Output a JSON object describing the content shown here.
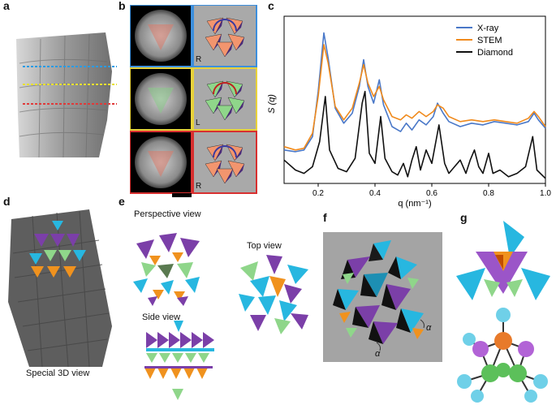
{
  "panel_labels": {
    "a": "a",
    "b": "b",
    "c": "c",
    "d": "d",
    "e": "e",
    "f": "f",
    "g": "g"
  },
  "panel_b": {
    "chirality": [
      "R",
      "L",
      "R"
    ],
    "frame_colors": [
      "#3d8fdd",
      "#e8d23a",
      "#d83030"
    ]
  },
  "panel_a": {
    "line_colors": [
      "#2b9be3",
      "#e8e030",
      "#e03a3a"
    ]
  },
  "panel_e": {
    "perspective": "Perspective view",
    "side": "Side view",
    "top": "Top view"
  },
  "panel_d": {
    "caption": "Special 3D view"
  },
  "panel_f": {
    "angle_labels": [
      "α",
      "α"
    ]
  },
  "colors": {
    "xray": "#4a78c8",
    "stem": "#f08a1c",
    "diamond": "#111111",
    "purple": "#7b3fa8",
    "cyan": "#27b7e0",
    "orange": "#f0921e",
    "green": "#8fd68a"
  },
  "chart_data": {
    "type": "line",
    "xlabel": "q (nm⁻¹)",
    "ylabel": "S (q)",
    "xlim": [
      0.08,
      1.0
    ],
    "xticks": [
      "0.2",
      "0.4",
      "0.6",
      "0.8",
      "1.0"
    ],
    "legend_position": "top-right",
    "series": [
      {
        "name": "X-ray",
        "color": "#4a78c8",
        "points": [
          [
            0.08,
            0.2
          ],
          [
            0.12,
            0.19
          ],
          [
            0.15,
            0.2
          ],
          [
            0.18,
            0.28
          ],
          [
            0.2,
            0.55
          ],
          [
            0.22,
            0.9
          ],
          [
            0.235,
            0.75
          ],
          [
            0.26,
            0.45
          ],
          [
            0.29,
            0.36
          ],
          [
            0.32,
            0.42
          ],
          [
            0.345,
            0.58
          ],
          [
            0.36,
            0.74
          ],
          [
            0.375,
            0.58
          ],
          [
            0.395,
            0.48
          ],
          [
            0.415,
            0.62
          ],
          [
            0.43,
            0.47
          ],
          [
            0.46,
            0.34
          ],
          [
            0.49,
            0.31
          ],
          [
            0.51,
            0.36
          ],
          [
            0.53,
            0.32
          ],
          [
            0.555,
            0.38
          ],
          [
            0.58,
            0.35
          ],
          [
            0.605,
            0.4
          ],
          [
            0.62,
            0.48
          ],
          [
            0.64,
            0.42
          ],
          [
            0.66,
            0.37
          ],
          [
            0.7,
            0.34
          ],
          [
            0.74,
            0.36
          ],
          [
            0.78,
            0.35
          ],
          [
            0.82,
            0.37
          ],
          [
            0.86,
            0.36
          ],
          [
            0.9,
            0.35
          ],
          [
            0.94,
            0.37
          ],
          [
            0.96,
            0.42
          ],
          [
            0.975,
            0.38
          ],
          [
            1.0,
            0.33
          ]
        ]
      },
      {
        "name": "STEM",
        "color": "#f08a1c",
        "points": [
          [
            0.08,
            0.22
          ],
          [
            0.12,
            0.2
          ],
          [
            0.15,
            0.21
          ],
          [
            0.18,
            0.3
          ],
          [
            0.2,
            0.52
          ],
          [
            0.22,
            0.83
          ],
          [
            0.235,
            0.72
          ],
          [
            0.26,
            0.46
          ],
          [
            0.29,
            0.38
          ],
          [
            0.32,
            0.45
          ],
          [
            0.345,
            0.6
          ],
          [
            0.36,
            0.71
          ],
          [
            0.375,
            0.6
          ],
          [
            0.395,
            0.52
          ],
          [
            0.415,
            0.58
          ],
          [
            0.43,
            0.5
          ],
          [
            0.46,
            0.4
          ],
          [
            0.49,
            0.38
          ],
          [
            0.51,
            0.41
          ],
          [
            0.53,
            0.39
          ],
          [
            0.555,
            0.43
          ],
          [
            0.58,
            0.4
          ],
          [
            0.605,
            0.43
          ],
          [
            0.62,
            0.47
          ],
          [
            0.64,
            0.45
          ],
          [
            0.66,
            0.4
          ],
          [
            0.7,
            0.37
          ],
          [
            0.74,
            0.38
          ],
          [
            0.78,
            0.37
          ],
          [
            0.82,
            0.38
          ],
          [
            0.86,
            0.37
          ],
          [
            0.9,
            0.36
          ],
          [
            0.94,
            0.39
          ],
          [
            0.96,
            0.43
          ],
          [
            0.975,
            0.4
          ],
          [
            1.0,
            0.34
          ]
        ]
      },
      {
        "name": "Diamond",
        "color": "#111111",
        "points": [
          [
            0.08,
            0.14
          ],
          [
            0.12,
            0.08
          ],
          [
            0.15,
            0.06
          ],
          [
            0.18,
            0.1
          ],
          [
            0.205,
            0.25
          ],
          [
            0.225,
            0.52
          ],
          [
            0.24,
            0.2
          ],
          [
            0.27,
            0.09
          ],
          [
            0.3,
            0.07
          ],
          [
            0.33,
            0.15
          ],
          [
            0.355,
            0.48
          ],
          [
            0.365,
            0.55
          ],
          [
            0.38,
            0.18
          ],
          [
            0.4,
            0.12
          ],
          [
            0.42,
            0.4
          ],
          [
            0.435,
            0.15
          ],
          [
            0.46,
            0.07
          ],
          [
            0.48,
            0.05
          ],
          [
            0.5,
            0.12
          ],
          [
            0.515,
            0.04
          ],
          [
            0.53,
            0.14
          ],
          [
            0.545,
            0.22
          ],
          [
            0.56,
            0.08
          ],
          [
            0.58,
            0.2
          ],
          [
            0.6,
            0.12
          ],
          [
            0.625,
            0.35
          ],
          [
            0.645,
            0.12
          ],
          [
            0.66,
            0.06
          ],
          [
            0.68,
            0.1
          ],
          [
            0.7,
            0.14
          ],
          [
            0.72,
            0.06
          ],
          [
            0.735,
            0.14
          ],
          [
            0.75,
            0.2
          ],
          [
            0.765,
            0.1
          ],
          [
            0.78,
            0.06
          ],
          [
            0.8,
            0.18
          ],
          [
            0.815,
            0.06
          ],
          [
            0.84,
            0.08
          ],
          [
            0.87,
            0.04
          ],
          [
            0.9,
            0.06
          ],
          [
            0.93,
            0.1
          ],
          [
            0.955,
            0.28
          ],
          [
            0.97,
            0.08
          ],
          [
            1.0,
            0.03
          ]
        ]
      }
    ]
  }
}
